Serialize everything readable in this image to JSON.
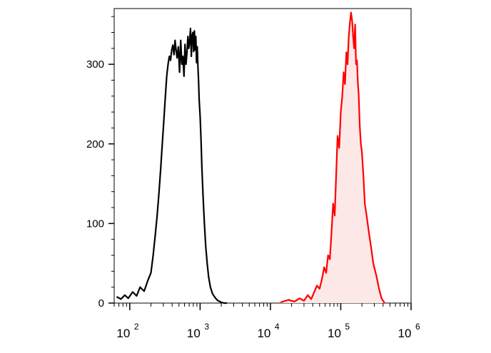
{
  "colors": {
    "axis": "#000000",
    "control": "#000000",
    "stained": "#ff0000",
    "stained_fill": "#fde8e8"
  },
  "chart_data": {
    "type": "line",
    "title": "",
    "xlabel": "",
    "ylabel": "",
    "x_scale": "log",
    "xlim": [
      60,
      1000000
    ],
    "ylim": [
      0,
      370
    ],
    "grid": false,
    "legend": "none",
    "yticks": [
      {
        "value": 0,
        "label": "0"
      },
      {
        "value": 100,
        "label": "100"
      },
      {
        "value": 200,
        "label": "200"
      },
      {
        "value": 300,
        "label": "300"
      }
    ],
    "xticks": [
      {
        "value": 100,
        "base": "10",
        "exp": "2"
      },
      {
        "value": 1000,
        "base": "10",
        "exp": "3"
      },
      {
        "value": 10000,
        "base": "10",
        "exp": "4"
      },
      {
        "value": 100000,
        "base": "10",
        "exp": "5"
      },
      {
        "value": 1000000,
        "base": "10",
        "exp": "6"
      }
    ],
    "series": [
      {
        "key": "control",
        "filled": false,
        "color": "#000000",
        "x": [
          65,
          75,
          85,
          95,
          110,
          125,
          140,
          160,
          180,
          200,
          215,
          230,
          245,
          260,
          275,
          290,
          305,
          320,
          335,
          350,
          365,
          380,
          395,
          410,
          425,
          440,
          455,
          470,
          490,
          510,
          530,
          550,
          570,
          590,
          610,
          630,
          650,
          670,
          690,
          710,
          730,
          750,
          770,
          790,
          810,
          830,
          850,
          870,
          890,
          910,
          930,
          950,
          970,
          1000,
          1030,
          1060,
          1100,
          1150,
          1200,
          1260,
          1320,
          1400,
          1500,
          1600,
          1700,
          1800,
          1900,
          2000,
          2200,
          2400
        ],
        "y": [
          8,
          5,
          10,
          6,
          14,
          9,
          20,
          15,
          28,
          38,
          60,
          85,
          110,
          138,
          168,
          200,
          230,
          258,
          285,
          300,
          310,
          305,
          318,
          324,
          312,
          330,
          318,
          308,
          322,
          290,
          330,
          300,
          310,
          285,
          325,
          300,
          315,
          335,
          320,
          328,
          345,
          310,
          336,
          340,
          316,
          342,
          318,
          335,
          302,
          322,
          298,
          280,
          255,
          235,
          205,
          170,
          135,
          100,
          72,
          50,
          33,
          20,
          12,
          8,
          5,
          3,
          2,
          1,
          0,
          0
        ]
      },
      {
        "key": "stained",
        "filled": true,
        "color": "#ff0000",
        "x": [
          14000,
          18000,
          22000,
          26000,
          30000,
          34000,
          38000,
          42000,
          46000,
          50000,
          54000,
          58000,
          62000,
          66000,
          70000,
          74000,
          78000,
          82000,
          86000,
          90000,
          95000,
          100000,
          105000,
          110000,
          115000,
          120000,
          125000,
          130000,
          135000,
          140000,
          145000,
          150000,
          155000,
          160000,
          165000,
          170000,
          175000,
          180000,
          186000,
          193000,
          200000,
          210000,
          220000,
          235000,
          250000,
          270000,
          290000,
          320000,
          350000,
          380000,
          420000
        ],
        "y": [
          1,
          4,
          2,
          6,
          3,
          10,
          5,
          14,
          22,
          18,
          30,
          45,
          38,
          60,
          55,
          90,
          125,
          110,
          160,
          210,
          195,
          240,
          260,
          290,
          275,
          315,
          300,
          335,
          352,
          365,
          355,
          335,
          320,
          350,
          300,
          305,
          278,
          262,
          225,
          200,
          190,
          160,
          125,
          108,
          90,
          70,
          50,
          35,
          18,
          6,
          0
        ]
      }
    ]
  }
}
